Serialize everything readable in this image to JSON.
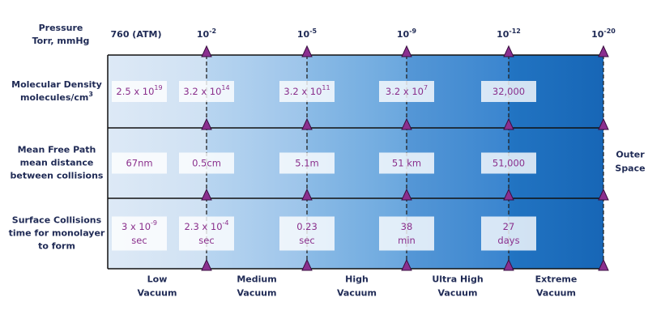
{
  "header": {
    "label": [
      {
        "text": "Pressure"
      },
      {
        "text": "Torr, mmHg"
      }
    ],
    "ticks": [
      {
        "text": "760 (ATM)"
      },
      {
        "text": "10",
        "sup": "-2"
      },
      {
        "text": "10",
        "sup": "-5"
      },
      {
        "text": "10",
        "sup": "-9"
      },
      {
        "text": "10",
        "sup": "-12"
      },
      {
        "text": "10",
        "sup": "-20"
      }
    ]
  },
  "rows": [
    {
      "label": [
        {
          "text": "Molecular Density"
        },
        {
          "text": "molecules/cm",
          "sup": "3"
        }
      ],
      "cells": [
        [
          {
            "text": "2.5 x 10",
            "sup": "19"
          }
        ],
        [
          {
            "text": "3.2 x 10",
            "sup": "14"
          }
        ],
        [
          {
            "text": "3.2 x 10",
            "sup": "11"
          }
        ],
        [
          {
            "text": "3.2 x 10",
            "sup": "7"
          }
        ],
        [
          {
            "text": "32,000"
          }
        ]
      ]
    },
    {
      "label": [
        {
          "text": "Mean Free Path"
        },
        {
          "text": "mean distance"
        },
        {
          "text": "between collisions"
        }
      ],
      "cells": [
        [
          {
            "text": "67nm"
          }
        ],
        [
          {
            "text": "0.5cm"
          }
        ],
        [
          {
            "text": "5.1m"
          }
        ],
        [
          {
            "text": "51 km"
          }
        ],
        [
          {
            "text": "51,000"
          }
        ]
      ]
    },
    {
      "label": [
        {
          "text": "Surface Collisions"
        },
        {
          "text": "time for monolayer"
        },
        {
          "text": "to form"
        }
      ],
      "cells": [
        [
          {
            "text": "3 x 10",
            "sup": "-9"
          },
          {
            "text": "sec"
          }
        ],
        [
          {
            "text": "2.3 x 10",
            "sup": "-4"
          },
          {
            "text": "sec"
          }
        ],
        [
          {
            "text": "0.23"
          },
          {
            "text": "sec"
          }
        ],
        [
          {
            "text": "38"
          },
          {
            "text": "min"
          }
        ],
        [
          {
            "text": "27"
          },
          {
            "text": "days"
          }
        ]
      ]
    }
  ],
  "outer_space": [
    {
      "text": "Outer"
    },
    {
      "text": "Space"
    }
  ],
  "regions": [
    [
      {
        "text": "Low"
      },
      {
        "text": "Vacuum"
      }
    ],
    [
      {
        "text": "Medium"
      },
      {
        "text": "Vacuum"
      }
    ],
    [
      {
        "text": "High"
      },
      {
        "text": "Vacuum"
      }
    ],
    [
      {
        "text": "Ultra High"
      },
      {
        "text": "Vacuum"
      }
    ],
    [
      {
        "text": "Extreme"
      },
      {
        "text": "Vacuum"
      }
    ]
  ]
}
